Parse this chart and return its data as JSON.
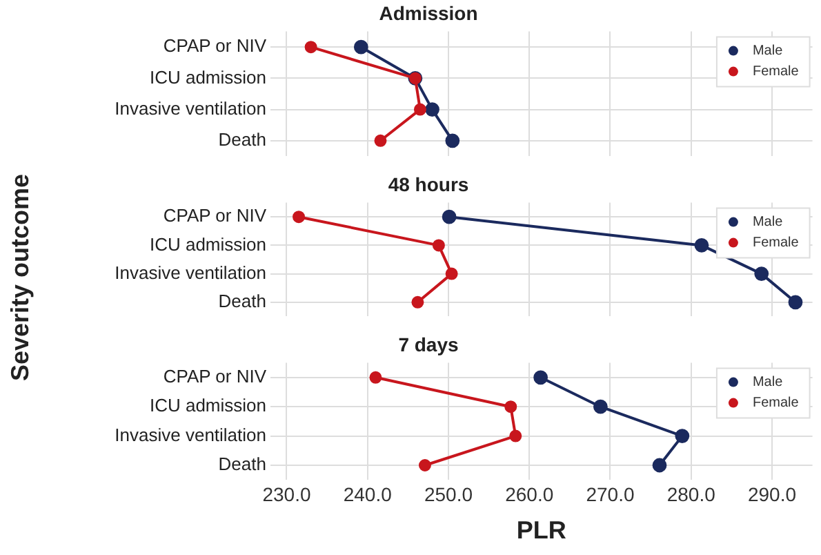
{
  "chart_data": [
    {
      "type": "line",
      "title": "Admission",
      "orientation": "horizontal",
      "categories": [
        "CPAP or NIV",
        "ICU admission",
        "Invasive ventilation",
        "Death"
      ],
      "series": [
        {
          "name": "Male",
          "color": "#1b2a5e",
          "values": [
            239.2,
            245.9,
            248.0,
            250.5
          ]
        },
        {
          "name": "Female",
          "color": "#c8161d",
          "values": [
            233.0,
            245.9,
            246.5,
            241.6
          ]
        }
      ],
      "xlim": [
        228,
        295
      ],
      "xticks": [
        230,
        240,
        250,
        260,
        270,
        280,
        290
      ],
      "tick_labels": "y",
      "grid": true,
      "legend": "top right",
      "marker": "circle",
      "line_style": "solid"
    },
    {
      "type": "line",
      "title": "48 hours",
      "ylabel": "Severity outcome",
      "orientation": "horizontal",
      "categories": [
        "CPAP or NIV",
        "ICU admission",
        "Invasive ventilation",
        "Death"
      ],
      "series": [
        {
          "name": "Male",
          "color": "#1b2a5e",
          "values": [
            250.1,
            281.3,
            288.7,
            292.9
          ]
        },
        {
          "name": "Female",
          "color": "#c8161d",
          "values": [
            231.5,
            248.8,
            250.4,
            246.2
          ]
        }
      ],
      "xlim": [
        228,
        295
      ],
      "xticks": [
        230,
        240,
        250,
        260,
        270,
        280,
        290
      ],
      "tick_labels": "y",
      "grid": true,
      "legend": "top right",
      "marker": "circle",
      "line_style": "solid"
    },
    {
      "type": "line",
      "title": "7 days",
      "xlabel": "PLR",
      "orientation": "horizontal",
      "categories": [
        "CPAP or NIV",
        "ICU admission",
        "Invasive ventilation",
        "Death"
      ],
      "series": [
        {
          "name": "Male",
          "color": "#1b2a5e",
          "values": [
            261.4,
            268.8,
            278.9,
            276.1
          ]
        },
        {
          "name": "Female",
          "color": "#c8161d",
          "values": [
            241.0,
            257.7,
            258.3,
            247.1
          ]
        }
      ],
      "xlim": [
        228,
        295
      ],
      "xticks": [
        {
          "value": 230,
          "label": "230.0"
        },
        {
          "value": 240,
          "label": "240.0"
        },
        {
          "value": 250,
          "label": "250.0"
        },
        {
          "value": 260,
          "label": "260.0"
        },
        {
          "value": 270,
          "label": "270.0"
        },
        {
          "value": 280,
          "label": "280.0"
        },
        {
          "value": 290,
          "label": "290.0"
        }
      ],
      "grid": true,
      "legend": "top right",
      "marker": "circle",
      "line_style": "solid"
    }
  ]
}
